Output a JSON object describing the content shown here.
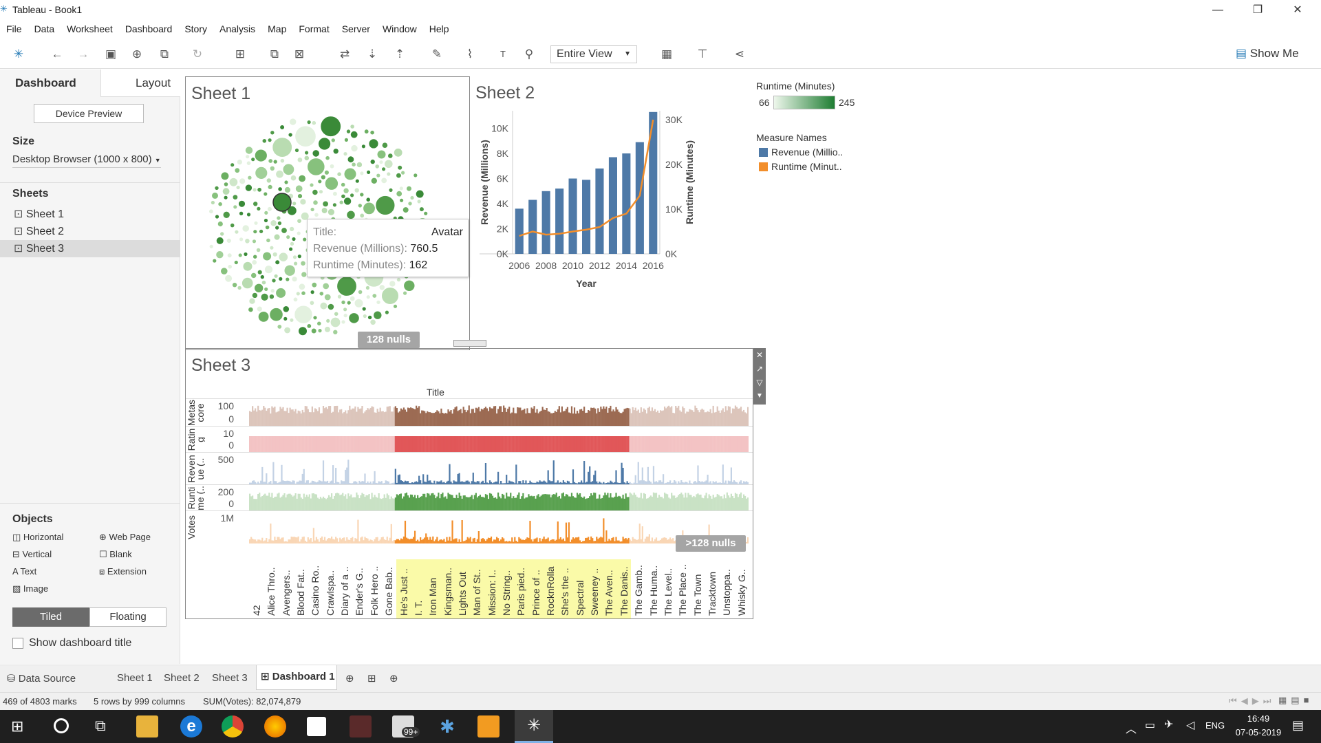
{
  "window": {
    "title": "Tableau - Book1"
  },
  "menu": [
    "File",
    "Data",
    "Worksheet",
    "Dashboard",
    "Story",
    "Analysis",
    "Map",
    "Format",
    "Server",
    "Window",
    "Help"
  ],
  "toolbar": {
    "fit": "Entire View",
    "show_me": "Show Me"
  },
  "left": {
    "tab_dashboard": "Dashboard",
    "tab_layout": "Layout",
    "device_preview": "Device Preview",
    "size_label": "Size",
    "size_value": "Desktop Browser (1000 x 800)",
    "sheets_label": "Sheets",
    "sheets": [
      "Sheet 1",
      "Sheet 2",
      "Sheet 3"
    ],
    "objects_label": "Objects",
    "objects": [
      "Horizontal",
      "Web Page",
      "Vertical",
      "Blank",
      "Text",
      "Extension",
      "Image"
    ],
    "tiled": "Tiled",
    "floating": "Floating",
    "show_title": "Show dashboard title"
  },
  "sheet1": {
    "title": "Sheet 1",
    "nulls": "128 nulls",
    "tooltip": {
      "title_label": "Title:",
      "title_value": "Avatar",
      "rev_label": "Revenue (Millions):",
      "rev_value": "760.5",
      "rt_label": "Runtime (Minutes):",
      "rt_value": "162"
    }
  },
  "legend": {
    "runtime_title": "Runtime (Minutes)",
    "runtime_min": "66",
    "runtime_max": "245",
    "measure_title": "Measure Names",
    "m1": "Revenue (Millio..",
    "m2": "Runtime (Minut..",
    "c1": "#4e79a7",
    "c2": "#f28e2b"
  },
  "sheet2": {
    "title": "Sheet 2"
  },
  "chart_data": [
    {
      "type": "bar",
      "name": "Sheet 2",
      "categories": [
        "2006",
        "2007",
        "2008",
        "2009",
        "2010",
        "2011",
        "2012",
        "2013",
        "2014",
        "2015",
        "2016"
      ],
      "series": [
        {
          "name": "Revenue (Millions)",
          "axis": "left",
          "values": [
            3600,
            4300,
            5000,
            5200,
            6000,
            5900,
            6800,
            7700,
            8000,
            8900,
            11300
          ]
        },
        {
          "name": "Runtime (Minutes)",
          "axis": "right",
          "type": "line",
          "values": [
            4000,
            5000,
            4300,
            4500,
            5000,
            5400,
            6000,
            8000,
            9000,
            13000,
            30000
          ]
        }
      ],
      "xlabel": "Year",
      "ylabel": "Revenue (Millions)",
      "y2label": "Runtime (Minutes)",
      "yticks": [
        "0K",
        "2K",
        "4K",
        "6K",
        "8K",
        "10K"
      ],
      "y2ticks": [
        "0K",
        "10K",
        "20K",
        "30K"
      ],
      "xticks": [
        "2006",
        "2008",
        "2010",
        "2012",
        "2014",
        "2016"
      ],
      "ylim": [
        0,
        11400
      ],
      "y2lim": [
        0,
        32000
      ]
    },
    {
      "type": "bar",
      "name": "Sheet 3",
      "title": "Title",
      "rows": [
        {
          "label": "Metas core",
          "tick_top": "100",
          "tick_bot": "0",
          "color": "#9c6b53",
          "faded": "#dcc5bb"
        },
        {
          "label": "Ratin g",
          "tick_top": "10",
          "tick_bot": "0",
          "color": "#e15759",
          "faded": "#f3c3c4"
        },
        {
          "label": "Reven ue (..",
          "tick_top": "500",
          "tick_bot": "",
          "color": "#4e79a7",
          "faded": "#c3d2e5"
        },
        {
          "label": "Runti me (..",
          "tick_top": "200",
          "tick_bot": "0",
          "color": "#59a14f",
          "faded": "#c9e2c5"
        },
        {
          "label": "Votes",
          "tick_top": "1M",
          "tick_bot": "",
          "color": "#f28e2b",
          "faded": "#f9d6b5"
        }
      ],
      "x_labels": [
        "42",
        "Alice Thro..",
        "Avengers..",
        "Blood Fat..",
        "Casino Ro..",
        "Crawlspa..",
        "Diary of a ..",
        "Ender's G..",
        "Folk Hero ..",
        "Gone Bab..",
        "He's Just ..",
        "I. T.",
        "Iron Man",
        "Kingsman..",
        "Lights Out",
        "Man of St..",
        "Mission: I..",
        "No String..",
        "Paris pied..",
        "Prince of ..",
        "RocknRolla",
        "She's the ..",
        "Spectral",
        "Sweeney ..",
        "The Aven..",
        "The Danis..",
        "The Gamb..",
        "The Huma..",
        "The Level..",
        "The Place ..",
        "The Town",
        "Tracktown",
        "Unstoppa..",
        "Whisky G.."
      ],
      "highlight_range": [
        10,
        25
      ]
    }
  ],
  "sheet3": {
    "title": "Sheet 3",
    "col_title": "Title",
    "nulls": ">128 nulls"
  },
  "tabs": {
    "datasource": "Data Source",
    "s1": "Sheet 1",
    "s2": "Sheet 2",
    "s3": "Sheet 3",
    "d1": "Dashboard 1"
  },
  "status": {
    "marks": "469 of 4803 marks",
    "rows": "5 rows by 999 columns",
    "sum": "SUM(Votes): 82,074,879"
  },
  "taskbar": {
    "lang": "ENG",
    "time": "16:49",
    "date": "07-05-2019",
    "badge": "99+"
  }
}
